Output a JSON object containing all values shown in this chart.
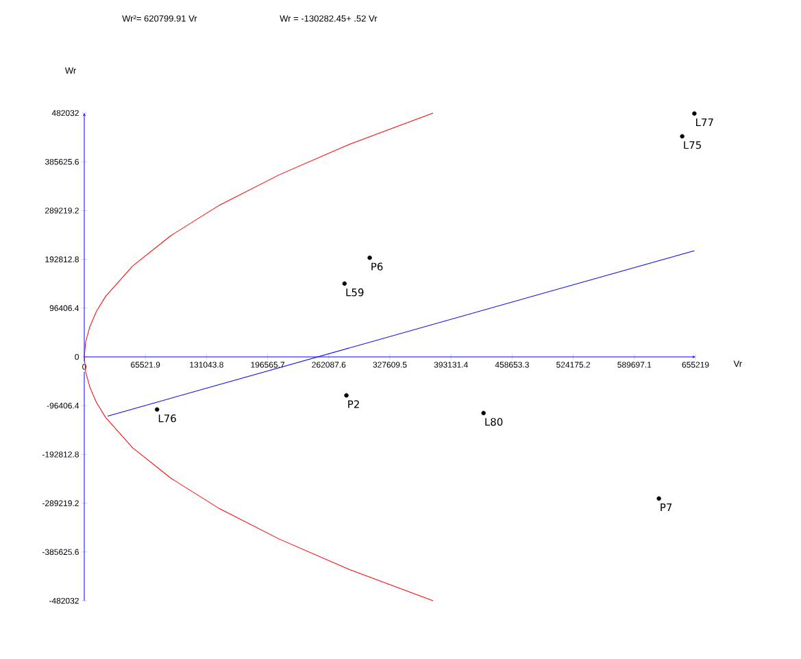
{
  "chart_data": {
    "type": "scatter",
    "xlabel": "Vr",
    "ylabel": "Wr",
    "annotations": [
      "Wr²=  620799.91 Vr",
      "Wr = -130282.45+ .52 Vr",
      {
        "text": "L77",
        "x": 654000,
        "y": 481000
      },
      {
        "text": "L75",
        "x": 641000,
        "y": 436000
      },
      {
        "text": "P6",
        "x": 306000,
        "y": 196000
      },
      {
        "text": "L59",
        "x": 279000,
        "y": 145000
      },
      {
        "text": "P2",
        "x": 281000,
        "y": -76000
      },
      {
        "text": "L76",
        "x": 78000,
        "y": -104000
      },
      {
        "text": "L80",
        "x": 428000,
        "y": -111000
      },
      {
        "text": "P7",
        "x": 616000,
        "y": -280000
      }
    ],
    "series": [
      {
        "marker": "circle",
        "color": "#000000",
        "x": [
          654000,
          641000,
          306000,
          279000,
          281000,
          78000,
          428000,
          616000
        ],
        "values": [
          481000,
          436000,
          196000,
          145000,
          -76000,
          -104000,
          -111000,
          -280000
        ]
      },
      {
        "type": "line",
        "color": "#ff0000",
        "x": [
          374000,
          284000,
          209000,
          145000,
          93000,
          52000,
          23000,
          13000,
          6000,
          1500,
          0,
          1500,
          6000,
          13000,
          23000,
          52000,
          93000,
          145000,
          209000,
          284000,
          374000
        ],
        "values": [
          -482000,
          -420000,
          -360000,
          -300000,
          -240000,
          -180000,
          -120000,
          -90000,
          -60000,
          -30000,
          0,
          30000,
          60000,
          90000,
          120000,
          180000,
          240000,
          300000,
          360000,
          420000,
          482000
        ]
      },
      {
        "type": "line",
        "color": "#0000ff",
        "x": [
          25000,
          654000
        ],
        "values": [
          -117000,
          210000
        ]
      }
    ],
    "xlim": [
      0,
      655219
    ],
    "ylim": [
      -482032,
      482032
    ],
    "xticks": [
      0,
      65521.9,
      131043.8,
      196565.7,
      262087.6,
      327609.5,
      393131.4,
      458653.3,
      524175.2,
      589697.1,
      655219
    ],
    "yticks": [
      -482032,
      -385625.6,
      -289219.2,
      -192812.8,
      -96406.4,
      0,
      96406.4,
      192812.8,
      289219.2,
      385625.6,
      482032
    ]
  }
}
